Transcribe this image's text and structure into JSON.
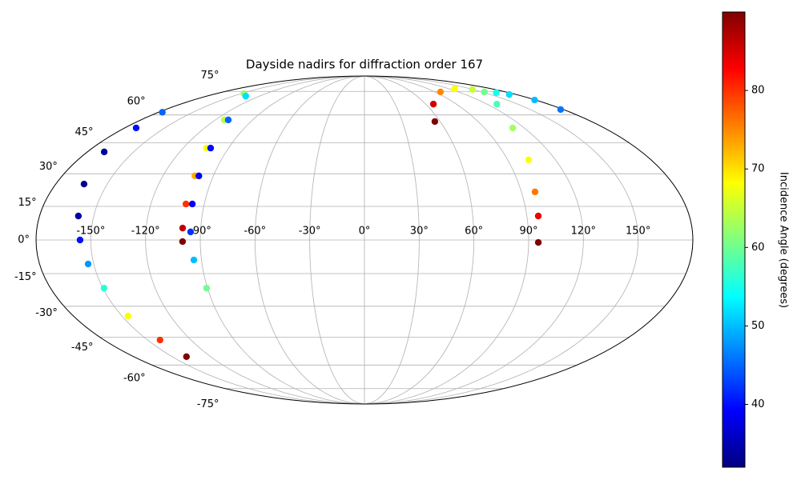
{
  "chart_data": {
    "type": "scatter",
    "projection": "mollweide",
    "title": "Dayside nadirs for diffraction order 167",
    "x": [
      -176.7,
      -171.4,
      -169.1,
      -163.5,
      -158.5,
      -155.9,
      -153.1,
      -149.3,
      -146.2,
      -141.4,
      -138.8,
      -146.3,
      -112.8,
      -104.5,
      -101.0,
      -100.3,
      -99.9,
      -99.7,
      -135.6,
      -109.6,
      -101.8,
      -98.6,
      -96.7,
      -95.4,
      -94.2,
      -90.5,
      55.8,
      67.5,
      96.8,
      128,
      148.8,
      163.9,
      172,
      179,
      177.5,
      152.8,
      129.6,
      111.3,
      103.1,
      97.8,
      96.3,
      95.3
    ],
    "y": [
      61.6,
      52.8,
      40.5,
      25.2,
      10.7,
      0,
      -10.7,
      -21.6,
      -34.6,
      -46.5,
      -55.3,
      73.4,
      57.2,
      42.4,
      29.0,
      16.1,
      5.3,
      -0.7,
      71.7,
      57.2,
      42.4,
      29.0,
      16.1,
      3.6,
      -8.9,
      -21.6,
      56.3,
      66.5,
      74.6,
      77.0,
      76.4,
      74.0,
      72.8,
      69.1,
      63.2,
      74.6,
      66.5,
      52.8,
      36.6,
      21.6,
      10.7,
      -1.1
    ],
    "color_values": [
      45,
      40,
      34,
      33,
      34,
      40,
      48,
      56,
      68,
      80,
      90,
      62,
      64,
      68,
      73,
      80,
      86,
      90,
      52,
      45,
      40,
      38,
      39,
      42,
      50,
      60,
      90,
      85,
      75,
      68,
      65,
      55,
      52,
      50,
      46,
      60,
      58,
      63,
      68,
      76,
      84,
      90
    ],
    "xlim": [
      -180,
      180
    ],
    "ylim": [
      -90,
      90
    ],
    "xticks": [
      {
        "value": -150,
        "label": "-150°"
      },
      {
        "value": -120,
        "label": "-120°"
      },
      {
        "value": -90,
        "label": "-90°"
      },
      {
        "value": -60,
        "label": "-60°"
      },
      {
        "value": -30,
        "label": "-30°"
      },
      {
        "value": 0,
        "label": "0°"
      },
      {
        "value": 30,
        "label": "30°"
      },
      {
        "value": 60,
        "label": "60°"
      },
      {
        "value": 90,
        "label": "90°"
      },
      {
        "value": 120,
        "label": "120°"
      },
      {
        "value": 150,
        "label": "150°"
      }
    ],
    "yticks": [
      {
        "value": -75,
        "label": "-75°"
      },
      {
        "value": -60,
        "label": "-60°"
      },
      {
        "value": -45,
        "label": "-45°"
      },
      {
        "value": -30,
        "label": "-30°"
      },
      {
        "value": -15,
        "label": "-15°"
      },
      {
        "value": 0,
        "label": "0°"
      },
      {
        "value": 15,
        "label": "15°"
      },
      {
        "value": 30,
        "label": "30°"
      },
      {
        "value": 45,
        "label": "45°"
      },
      {
        "value": 60,
        "label": "60°"
      },
      {
        "value": 75,
        "label": "75°"
      }
    ],
    "grid": true,
    "colorbar": {
      "label": "Incidence Angle (degrees)",
      "cmap": "jet",
      "lim": [
        32,
        90
      ],
      "ticks": [
        40,
        50,
        60,
        70,
        80
      ]
    }
  }
}
